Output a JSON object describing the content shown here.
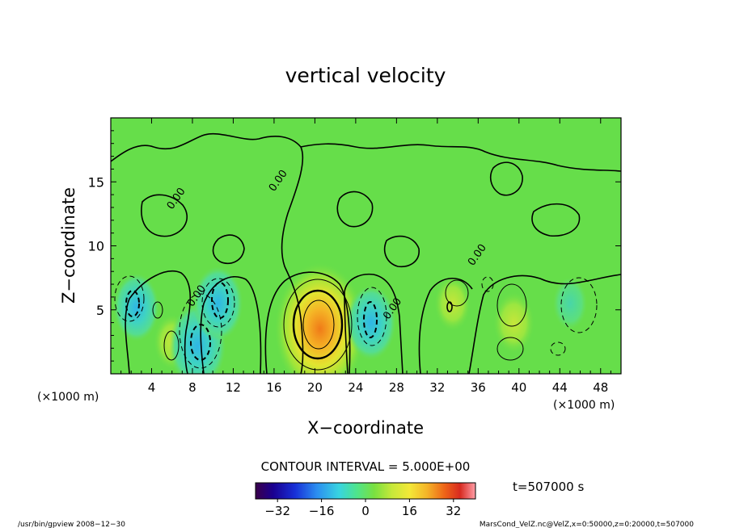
{
  "chart_data": {
    "type": "heatmap",
    "title": "vertical velocity",
    "xlabel": "X−coordinate",
    "ylabel": "Z−coordinate",
    "x_unit_left": "(×1000 m)",
    "x_unit_right": "(×1000 m)",
    "xlim": [
      0,
      50
    ],
    "ylim": [
      0,
      20
    ],
    "x_ticks": [
      4,
      8,
      12,
      16,
      20,
      24,
      28,
      32,
      36,
      40,
      44,
      48
    ],
    "y_ticks": [
      5,
      10,
      15
    ],
    "contour_interval_text": "CONTOUR INTERVAL = 5.000E+00",
    "time_label": "t=507000 s",
    "colorbar_ticks": [
      -32,
      -16,
      0,
      16,
      32
    ],
    "colorbar_range": [
      -40,
      40
    ],
    "contour_labels": [
      {
        "text": "0.00",
        "x": 16,
        "y": 14.2
      },
      {
        "text": "0.00",
        "x": 6.0,
        "y": 12.8
      },
      {
        "text": "0.00",
        "x": 8.0,
        "y": 5.2
      },
      {
        "text": "0.00",
        "x": 27.2,
        "y": 4.2
      },
      {
        "text": "0.00",
        "x": 35.5,
        "y": 8.4
      }
    ],
    "features": [
      {
        "kind": "updraft",
        "x": 20.5,
        "z": 3.5,
        "peak": 30
      },
      {
        "kind": "updraft",
        "x": 39.5,
        "z": 4.0,
        "peak": 8
      },
      {
        "kind": "updraft",
        "x": 33.5,
        "z": 5.5,
        "peak": 6
      },
      {
        "kind": "updraft",
        "x": 6.0,
        "z": 2.5,
        "peak": 6
      },
      {
        "kind": "downdraft",
        "x": 8.5,
        "z": 2.2,
        "peak": -15
      },
      {
        "kind": "downdraft",
        "x": 10.5,
        "z": 5.5,
        "peak": -12
      },
      {
        "kind": "downdraft",
        "x": 25.5,
        "z": 4.0,
        "peak": -12
      },
      {
        "kind": "downdraft",
        "x": 2.5,
        "z": 5.2,
        "peak": -10
      },
      {
        "kind": "downdraft",
        "x": 45.0,
        "z": 5.5,
        "peak": -5
      }
    ]
  },
  "footer": {
    "left": "/usr/bin/gpview   2008−12−30",
    "right": "MarsCond_VelZ.nc@VelZ,x=0:50000,z=0:20000,t=507000"
  }
}
